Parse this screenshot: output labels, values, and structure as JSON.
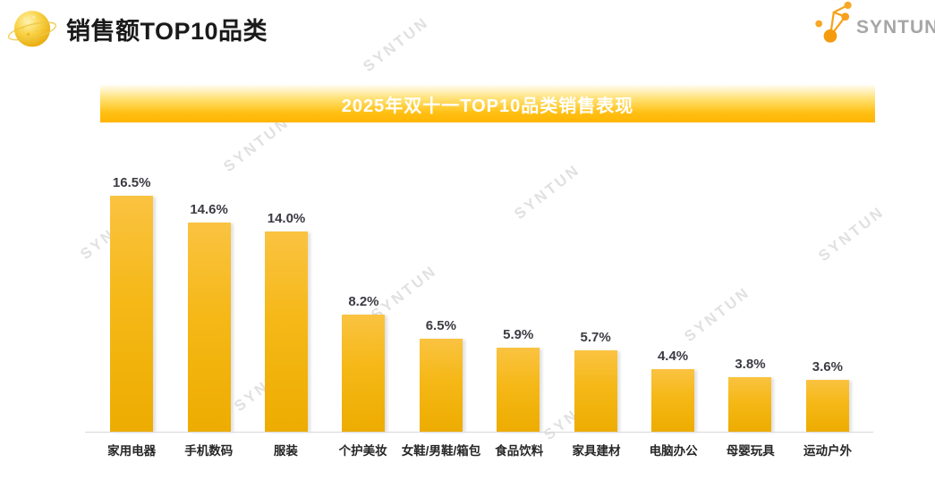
{
  "header": {
    "title": "销售额TOP10品类",
    "logo_text": "SYNTUN"
  },
  "watermark": {
    "text": "SYNTUN"
  },
  "chart_data": {
    "type": "bar",
    "title": "2025年双十一TOP10品类销售表现",
    "categories": [
      "家用电器",
      "手机数码",
      "服装",
      "个护美妆",
      "女鞋/男鞋/箱包",
      "食品饮料",
      "家具建材",
      "电脑办公",
      "母婴玩具",
      "运动户外"
    ],
    "values": [
      16.5,
      14.6,
      14.0,
      8.2,
      6.5,
      5.9,
      5.7,
      4.4,
      3.8,
      3.6
    ],
    "value_labels": [
      "16.5%",
      "14.6%",
      "14.0%",
      "8.2%",
      "6.5%",
      "5.9%",
      "5.7%",
      "4.4%",
      "3.8%",
      "3.6%"
    ],
    "unit": "%",
    "xlabel": "",
    "ylabel": "",
    "ylim": [
      0,
      18
    ],
    "grid": false,
    "legend": false
  },
  "colors": {
    "bar_gradient_top": "#FAC341",
    "bar_gradient_bottom": "#EDAC00",
    "banner_gradient_top": "#FFFDF4",
    "banner_gradient_bottom": "#FFB400",
    "banner_text": "#FFFFFF",
    "value_label": "#3B3B43",
    "category_label": "#262626",
    "page_title": "#1A1A1A",
    "axis_line": "#D8D8D8",
    "watermark": "#DDDDDD",
    "logo_orange": "#F5A01E",
    "logo_gray": "#A6A6A6"
  }
}
